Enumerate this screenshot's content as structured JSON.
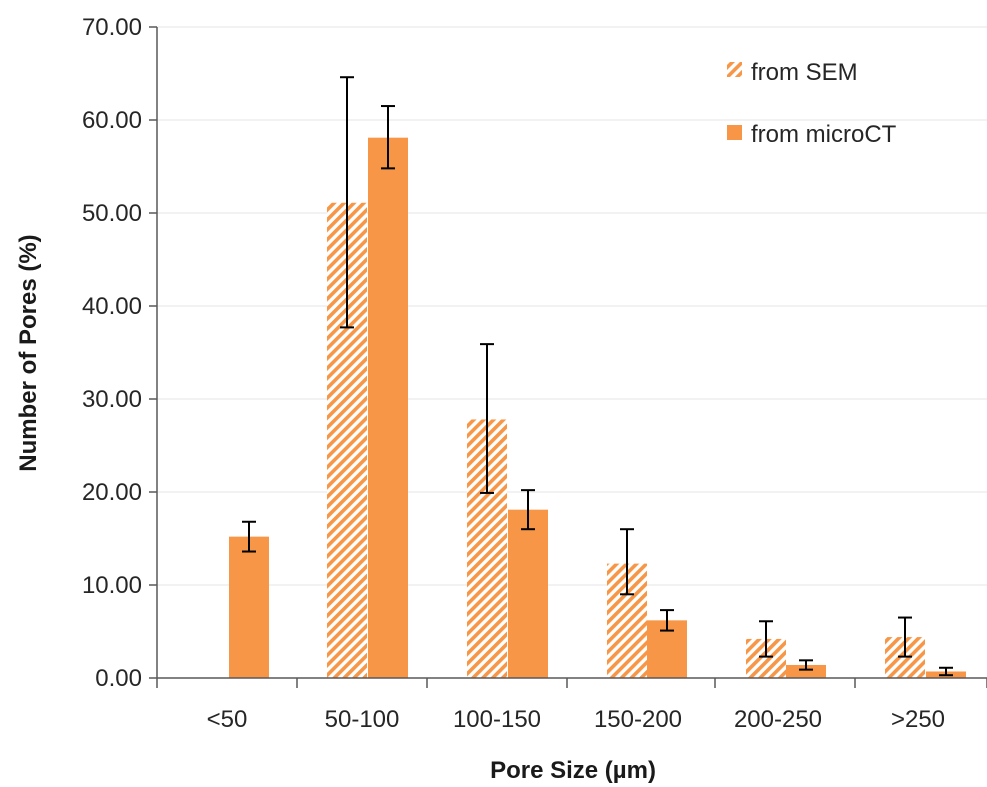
{
  "chart_data": {
    "type": "bar",
    "title": "",
    "xlabel": "Pore Size (µm)",
    "ylabel": "Number of Pores (%)",
    "ylim": [
      0,
      70
    ],
    "yticks": [
      "0.00",
      "10.00",
      "20.00",
      "30.00",
      "40.00",
      "50.00",
      "60.00",
      "70.00"
    ],
    "categories": [
      "<50",
      "50-100",
      "100-150",
      "150-200",
      "200-250",
      ">250"
    ],
    "grid": true,
    "legend_position": "top-right",
    "series": [
      {
        "name": "from SEM",
        "style": "hatched",
        "color": "#F79646",
        "values": [
          0,
          51.1,
          27.8,
          12.3,
          4.2,
          4.4
        ],
        "error_low": [
          null,
          37.7,
          19.9,
          9.0,
          2.3,
          2.3
        ],
        "error_high": [
          null,
          64.6,
          35.9,
          16.0,
          6.1,
          6.5
        ]
      },
      {
        "name": "from microCT",
        "style": "solid",
        "color": "#F79646",
        "values": [
          15.2,
          58.1,
          18.1,
          6.2,
          1.4,
          0.7
        ],
        "error_low": [
          13.6,
          54.8,
          16.0,
          5.1,
          0.9,
          0.3
        ],
        "error_high": [
          16.8,
          61.5,
          20.2,
          7.3,
          1.9,
          1.1
        ]
      }
    ]
  }
}
